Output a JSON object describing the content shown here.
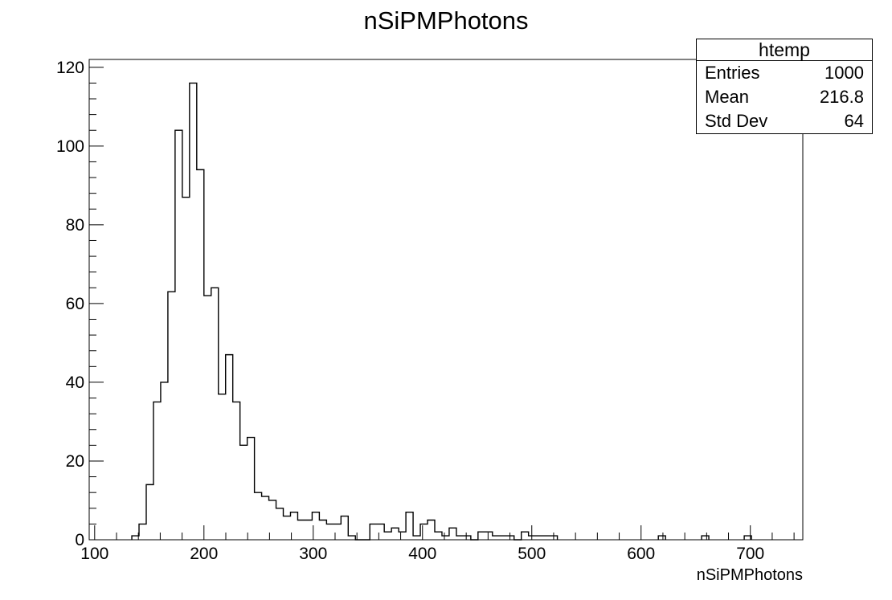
{
  "chart_data": {
    "type": "bar",
    "title": "nSiPMPhotons",
    "xlabel": "nSiPMPhotons",
    "ylabel": "",
    "xlim": [
      95,
      748
    ],
    "ylim": [
      0,
      122
    ],
    "bin_width": 6.6,
    "grid": false,
    "x_ticks": [
      100,
      200,
      300,
      400,
      500,
      600,
      700
    ],
    "y_ticks": [
      0,
      20,
      40,
      60,
      80,
      100,
      120
    ],
    "bins": [
      {
        "x": 134,
        "y": 1
      },
      {
        "x": 140.6,
        "y": 4
      },
      {
        "x": 147.2,
        "y": 14
      },
      {
        "x": 153.8,
        "y": 35
      },
      {
        "x": 160.4,
        "y": 40
      },
      {
        "x": 167,
        "y": 63
      },
      {
        "x": 173.6,
        "y": 104
      },
      {
        "x": 180.2,
        "y": 87
      },
      {
        "x": 186.8,
        "y": 116
      },
      {
        "x": 193.4,
        "y": 94
      },
      {
        "x": 200,
        "y": 62
      },
      {
        "x": 206.6,
        "y": 64
      },
      {
        "x": 213.2,
        "y": 37
      },
      {
        "x": 219.8,
        "y": 47
      },
      {
        "x": 226.4,
        "y": 35
      },
      {
        "x": 233,
        "y": 24
      },
      {
        "x": 239.6,
        "y": 26
      },
      {
        "x": 246.2,
        "y": 12
      },
      {
        "x": 252.8,
        "y": 11
      },
      {
        "x": 259.4,
        "y": 10
      },
      {
        "x": 266,
        "y": 8
      },
      {
        "x": 272.6,
        "y": 6
      },
      {
        "x": 279.2,
        "y": 7
      },
      {
        "x": 285.8,
        "y": 5
      },
      {
        "x": 292.4,
        "y": 5
      },
      {
        "x": 299,
        "y": 7
      },
      {
        "x": 305.6,
        "y": 5
      },
      {
        "x": 312.2,
        "y": 4
      },
      {
        "x": 318.8,
        "y": 4
      },
      {
        "x": 325.4,
        "y": 6
      },
      {
        "x": 332,
        "y": 1
      },
      {
        "x": 338.6,
        "y": 0
      },
      {
        "x": 345.2,
        "y": 0
      },
      {
        "x": 351.8,
        "y": 4
      },
      {
        "x": 358.4,
        "y": 4
      },
      {
        "x": 365,
        "y": 2
      },
      {
        "x": 371.6,
        "y": 3
      },
      {
        "x": 378.2,
        "y": 2
      },
      {
        "x": 384.8,
        "y": 7
      },
      {
        "x": 391.4,
        "y": 1
      },
      {
        "x": 398,
        "y": 4
      },
      {
        "x": 404.6,
        "y": 5
      },
      {
        "x": 411.2,
        "y": 2
      },
      {
        "x": 417.8,
        "y": 1
      },
      {
        "x": 424.4,
        "y": 3
      },
      {
        "x": 431,
        "y": 1
      },
      {
        "x": 437.6,
        "y": 1
      },
      {
        "x": 444.2,
        "y": 0
      },
      {
        "x": 450.8,
        "y": 2
      },
      {
        "x": 457.4,
        "y": 2
      },
      {
        "x": 464,
        "y": 1
      },
      {
        "x": 470.6,
        "y": 1
      },
      {
        "x": 477.2,
        "y": 1
      },
      {
        "x": 483.8,
        "y": 0
      },
      {
        "x": 490.4,
        "y": 2
      },
      {
        "x": 497,
        "y": 1
      },
      {
        "x": 503.6,
        "y": 1
      },
      {
        "x": 510.2,
        "y": 1
      },
      {
        "x": 516.8,
        "y": 1
      },
      {
        "x": 615.8,
        "y": 1
      },
      {
        "x": 655.4,
        "y": 1
      },
      {
        "x": 694.4,
        "y": 1
      }
    ]
  },
  "stats": {
    "name": "htemp",
    "rows": [
      {
        "label": "Entries",
        "value": "1000"
      },
      {
        "label": "Mean",
        "value": "216.8"
      },
      {
        "label": "Std Dev",
        "value": "64"
      }
    ]
  }
}
